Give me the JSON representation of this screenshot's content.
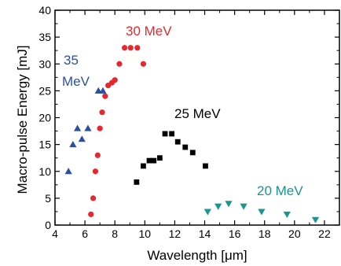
{
  "chart_data": {
    "type": "scatter",
    "title": "",
    "xlabel": "Wavelength [μm]",
    "ylabel": "Macro-pulse Energy [mJ]",
    "xlim": [
      4,
      23
    ],
    "ylim": [
      0,
      40
    ],
    "x_ticks": [
      4,
      6,
      8,
      10,
      12,
      14,
      16,
      18,
      20,
      22
    ],
    "y_ticks": [
      0,
      5,
      10,
      15,
      20,
      25,
      30,
      35,
      40
    ],
    "grid": false,
    "series": [
      {
        "name": "30 MeV",
        "color": "#e8262d",
        "marker": "circle",
        "x": [
          6.4,
          6.55,
          6.7,
          6.85,
          7.0,
          7.15,
          7.35,
          7.55,
          7.8,
          8.0,
          8.3,
          8.65,
          9.05,
          9.5,
          9.9
        ],
        "y": [
          2,
          5,
          10,
          13,
          18,
          21,
          24,
          26,
          26.5,
          27,
          30,
          33,
          33,
          33,
          30
        ]
      },
      {
        "name": "35 MeV",
        "color": "#2b50a1",
        "marker": "triangle-up",
        "x": [
          4.9,
          5.2,
          5.5,
          5.8,
          6.2,
          6.9,
          7.2
        ],
        "y": [
          10,
          15,
          18,
          16,
          18,
          25,
          25
        ]
      },
      {
        "name": "25 MeV",
        "color": "#000000",
        "marker": "square",
        "x": [
          9.45,
          9.9,
          10.3,
          10.6,
          11.0,
          11.35,
          11.8,
          12.2,
          12.7,
          13.2,
          14.05
        ],
        "y": [
          8,
          11,
          12,
          12,
          12.5,
          17,
          17,
          15.5,
          14.5,
          13.5,
          11
        ]
      },
      {
        "name": "20 MeV",
        "color": "#1a9590",
        "marker": "triangle-down",
        "x": [
          14.2,
          14.9,
          15.6,
          16.6,
          17.8,
          19.5,
          21.4
        ],
        "y": [
          2.5,
          3.5,
          4,
          3.5,
          2.5,
          2,
          1
        ]
      }
    ],
    "annotations": [
      {
        "text": "30 MeV",
        "color": "#e8262d"
      },
      {
        "text": "35",
        "color": "#2b50a1"
      },
      {
        "text": "MeV",
        "color": "#2b50a1"
      },
      {
        "text": "25 MeV",
        "color": "#000000"
      },
      {
        "text": "20 MeV",
        "color": "#1a9590"
      }
    ]
  }
}
